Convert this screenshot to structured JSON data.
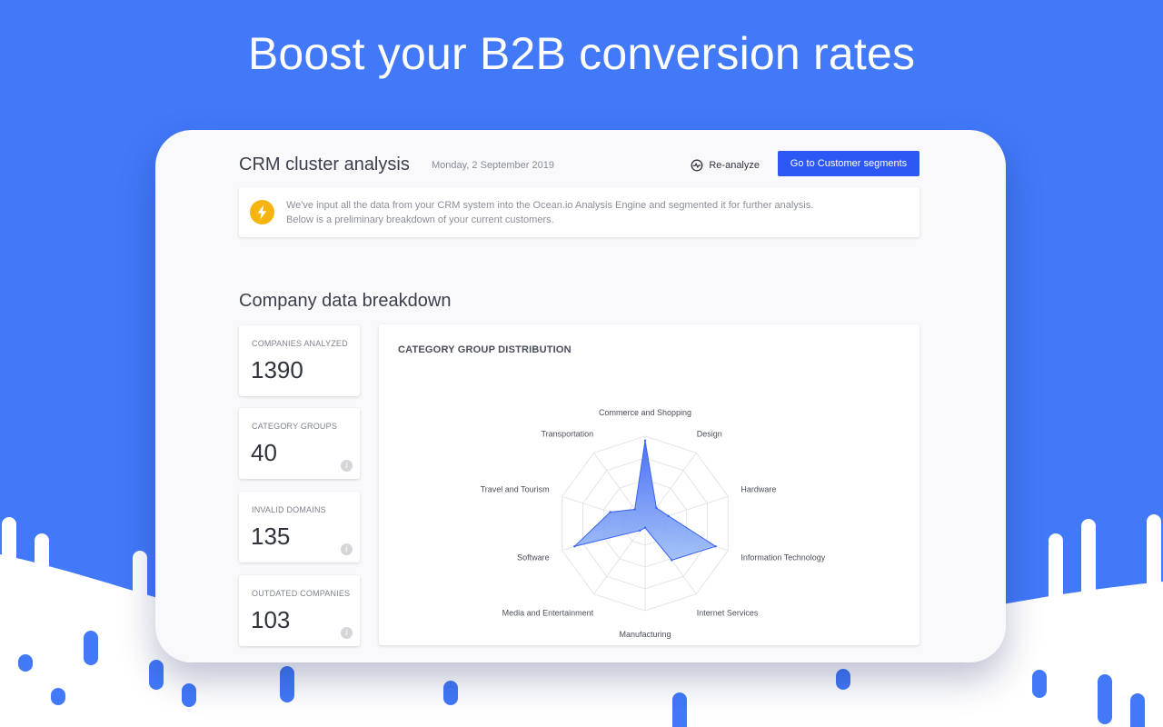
{
  "hero": {
    "title": "Boost your B2B conversion rates"
  },
  "header": {
    "title": "CRM cluster analysis",
    "date": "Monday, 2 September 2019",
    "reanalyze_label": "Re-analyze",
    "primary_button_label": "Go to Customer segments"
  },
  "notice": {
    "icon": "lightning-bolt-icon",
    "line1": "We've input all the data from your CRM system into the Ocean.io Analysis Engine and segmented it for further analysis.",
    "line2": "Below is a preliminary breakdown of your current customers."
  },
  "breakdown": {
    "title": "Company data breakdown",
    "stats": [
      {
        "label": "COMPANIES ANALYZED",
        "value": "1390",
        "info": false
      },
      {
        "label": "CATEGORY GROUPS",
        "value": "40",
        "info": true
      },
      {
        "label": "INVALID DOMAINS",
        "value": "135",
        "info": true
      },
      {
        "label": "OUTDATED COMPANIES",
        "value": "103",
        "info": true
      }
    ]
  },
  "colors": {
    "background": "#4279f9",
    "primary_button": "#2e58f6",
    "notice_icon": "#f6b40e",
    "radar_fill_top": "#3a63f5",
    "radar_fill_bottom": "#9bbcf7"
  },
  "chart_data": {
    "type": "radar",
    "title": "CATEGORY GROUP DISTRIBUTION",
    "categories": [
      "Commerce and Shopping",
      "Design",
      "Hardware",
      "Information Technology",
      "Internet Services",
      "Manufacturing",
      "Media and Entertainment",
      "Software",
      "Travel and Tourism",
      "Transportation"
    ],
    "series": [
      {
        "values": [
          0.95,
          0.22,
          0.28,
          0.85,
          0.52,
          0.05,
          0.1,
          0.85,
          0.42,
          0.2
        ]
      }
    ],
    "range": [
      0,
      1
    ],
    "rings": 4,
    "legend": "none"
  }
}
